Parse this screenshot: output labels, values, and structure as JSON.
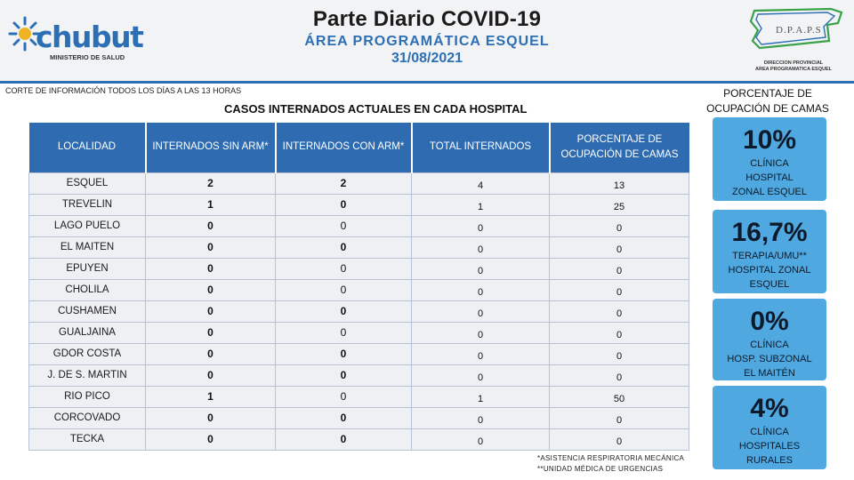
{
  "header": {
    "brand": "chubut",
    "ministry": "MINISTERIO DE SALUD",
    "title": "Parte Diario COVID-19",
    "subtitle": "ÁREA PROGRAMÁTICA ESQUEL",
    "date": "31/08/2021",
    "dpaps_label": "D.P.A.P.S",
    "dpaps_line1": "DIRECCION PROVINCIAL",
    "dpaps_line2": "AREA PROGRAMATICA ESQUEL"
  },
  "corte": "CORTE DE INFORMACIÓN TODOS LOS DÍAS A LAS 13 HORAS",
  "table": {
    "title": "CASOS INTERNADOS ACTUALES EN CADA HOSPITAL",
    "headers": [
      "LOCALIDAD",
      "INTERNADOS SIN ARM*",
      "INTERNADOS CON ARM*",
      "TOTAL INTERNADOS",
      "PORCENTAJE DE OCUPACIÓN DE CAMAS"
    ],
    "rows": [
      {
        "loc": "ESQUEL",
        "sin": "2",
        "con": "2",
        "total": "4",
        "pct": "13"
      },
      {
        "loc": "TREVELIN",
        "sin": "1",
        "con": "0",
        "total": "1",
        "pct": "25"
      },
      {
        "loc": "LAGO PUELO",
        "sin": "0",
        "con": "0",
        "total": "0",
        "pct": "0"
      },
      {
        "loc": "EL MAITEN",
        "sin": "0",
        "con": "0",
        "total": "0",
        "pct": "0"
      },
      {
        "loc": "EPUYEN",
        "sin": "0",
        "con": "0",
        "total": "0",
        "pct": "0"
      },
      {
        "loc": "CHOLILA",
        "sin": "0",
        "con": "0",
        "total": "0",
        "pct": "0"
      },
      {
        "loc": "CUSHAMEN",
        "sin": "0",
        "con": "0",
        "total": "0",
        "pct": "0"
      },
      {
        "loc": "GUALJAINA",
        "sin": "0",
        "con": "0",
        "total": "0",
        "pct": "0"
      },
      {
        "loc": "GDOR COSTA",
        "sin": "0",
        "con": "0",
        "total": "0",
        "pct": "0"
      },
      {
        "loc": "J. DE S. MARTIN",
        "sin": "0",
        "con": "0",
        "total": "0",
        "pct": "0"
      },
      {
        "loc": "RIO PICO",
        "sin": "1",
        "con": "0",
        "total": "1",
        "pct": "50"
      },
      {
        "loc": "CORCOVADO",
        "sin": "0",
        "con": "0",
        "total": "0",
        "pct": "0"
      },
      {
        "loc": "TECKA",
        "sin": "0",
        "con": "0",
        "total": "0",
        "pct": "0"
      }
    ]
  },
  "occupancy": {
    "title": "PORCENTAJE DE OCUPACIÓN DE CAMAS",
    "cards": [
      {
        "pct": "10%",
        "l1": "CLÍNICA",
        "l2": "HOSPITAL",
        "l3": "ZONAL ESQUEL"
      },
      {
        "pct": "16,7%",
        "l1": "TERAPIA/UMU**",
        "l2": "HOSPITAL ZONAL",
        "l3": "ESQUEL"
      },
      {
        "pct": "0%",
        "l1": "CLÍNICA",
        "l2": "HOSP. SUBZONAL",
        "l3": "EL MAITÉN"
      },
      {
        "pct": "4%",
        "l1": "CLÍNICA",
        "l2": "HOSPITALES",
        "l3": "RURALES"
      }
    ]
  },
  "footnotes": {
    "arm": "*ASISTENCIA RESPIRATORIA MECÁNICA",
    "umu": "**UNIDAD MÉDICA DE URGENCIAS"
  },
  "colors": {
    "header_blue": "#2e6bb0",
    "card_blue": "#4fa9e0",
    "subtitle_blue": "#2d6fb5"
  }
}
